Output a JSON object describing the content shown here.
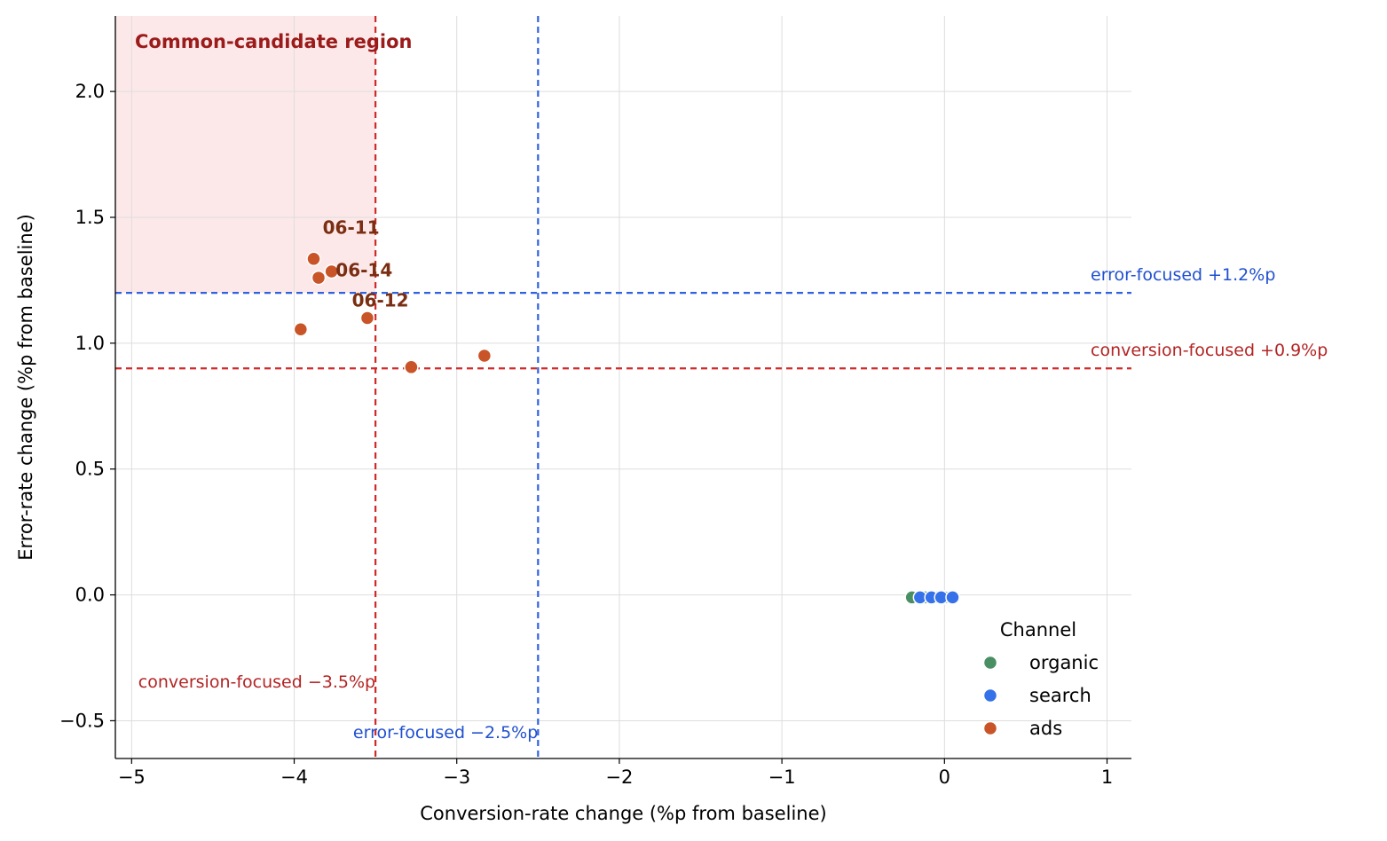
{
  "chart_data": {
    "type": "scatter",
    "title": "",
    "xlabel": "Conversion-rate change (%p from baseline)",
    "ylabel": "Error-rate change (%p from baseline)",
    "xlim": [
      -5.1,
      1.15
    ],
    "ylim": [
      -0.65,
      2.3
    ],
    "xticks": [
      -5,
      -4,
      -3,
      -2,
      -1,
      0,
      1
    ],
    "xtick_labels": [
      "−5",
      "−4",
      "−3",
      "−2",
      "−1",
      "0",
      "1"
    ],
    "yticks": [
      -0.5,
      0.0,
      0.5,
      1.0,
      1.5,
      2.0
    ],
    "ytick_labels": [
      "−0.5",
      "0.0",
      "0.5",
      "1.0",
      "1.5",
      "2.0"
    ],
    "grid": true,
    "legend": {
      "title": "Channel",
      "placement": "lower-right"
    },
    "series": [
      {
        "name": "organic",
        "color": "#4a8f63",
        "points": [
          {
            "x": -0.2,
            "y": -0.01
          },
          {
            "x": -0.12,
            "y": -0.01
          },
          {
            "x": -0.04,
            "y": -0.01
          },
          {
            "x": 0.0,
            "y": -0.01
          }
        ]
      },
      {
        "name": "search",
        "color": "#3571e8",
        "points": [
          {
            "x": -0.15,
            "y": -0.01
          },
          {
            "x": -0.08,
            "y": -0.01
          },
          {
            "x": -0.02,
            "y": -0.01
          },
          {
            "x": 0.05,
            "y": -0.01
          }
        ]
      },
      {
        "name": "ads",
        "color": "#c85427",
        "points": [
          {
            "x": -3.88,
            "y": 1.335,
            "label": ""
          },
          {
            "x": -3.85,
            "y": 1.26,
            "label": ""
          },
          {
            "x": -3.77,
            "y": 1.285,
            "label": "06-14"
          },
          {
            "x": -3.96,
            "y": 1.055,
            "label": ""
          },
          {
            "x": -3.55,
            "y": 1.1,
            "label": "06-12"
          },
          {
            "x": -3.28,
            "y": 0.905,
            "label": ""
          },
          {
            "x": -2.83,
            "y": 0.95,
            "label": ""
          }
        ]
      }
    ],
    "point_labels": [
      {
        "text": "06-11",
        "x": -3.65,
        "y": 1.46
      },
      {
        "text": "06-14",
        "x": -3.57,
        "y": 1.29
      },
      {
        "text": "06-12",
        "x": -3.47,
        "y": 1.17
      }
    ],
    "region": {
      "label": "Common-candidate region",
      "x_max": -3.5,
      "y_min": 1.2,
      "color": "#fde8e9"
    },
    "thresholds": {
      "vertical": [
        {
          "x": -3.5,
          "label": "conversion-focused −3.5%p",
          "color": "#d02a2a"
        },
        {
          "x": -2.5,
          "label": "error-focused −2.5%p",
          "color": "#2f62e0"
        }
      ],
      "horizontal": [
        {
          "y": 1.2,
          "label": "error-focused +1.2%p",
          "color": "#2f62e0"
        },
        {
          "y": 0.9,
          "label": "conversion-focused +0.9%p",
          "color": "#d02a2a"
        }
      ]
    },
    "label_colors": {
      "point_label": "#7a2e12",
      "region_label": "#9b1b1b",
      "red_text": "#b32424",
      "blue_text": "#2050d0"
    }
  }
}
